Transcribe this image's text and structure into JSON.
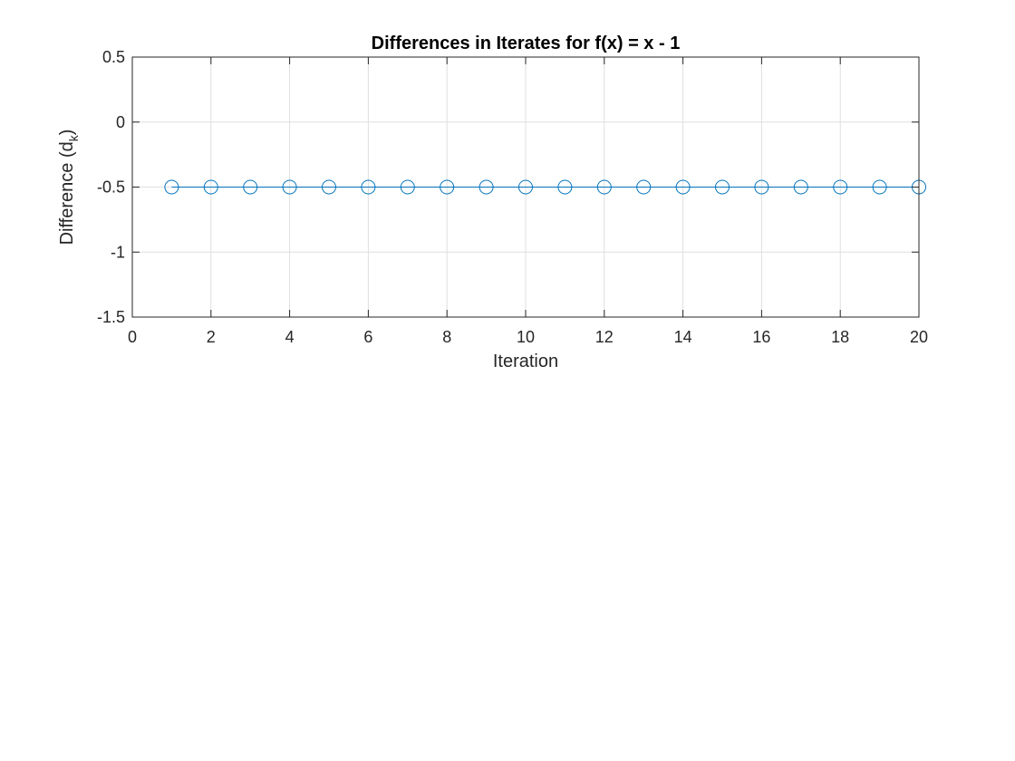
{
  "chart_data": {
    "type": "line",
    "title": "Differences in Iterates for f(x) = x - 1",
    "xlabel": "Iteration",
    "ylabel": {
      "main": "Difference (d",
      "subscript": "k",
      "close": ")"
    },
    "xlim": [
      0,
      20
    ],
    "ylim": [
      -1.5,
      0.5
    ],
    "xticks": [
      0,
      2,
      4,
      6,
      8,
      10,
      12,
      14,
      16,
      18,
      20
    ],
    "xtick_labels": [
      "0",
      "2",
      "4",
      "6",
      "8",
      "10",
      "12",
      "14",
      "16",
      "18",
      "20"
    ],
    "yticks": [
      -1.5,
      -1,
      -0.5,
      0,
      0.5
    ],
    "ytick_labels": [
      "-1.5",
      "-1",
      "-0.5",
      "0",
      "0.5"
    ],
    "grid": true,
    "marker": "circle",
    "line_color": "#0072BD",
    "series": [
      {
        "x": [
          1,
          2,
          3,
          4,
          5,
          6,
          7,
          8,
          9,
          10,
          11,
          12,
          13,
          14,
          15,
          16,
          17,
          18,
          19,
          20
        ],
        "y": [
          -0.5,
          -0.5,
          -0.5,
          -0.5,
          -0.5,
          -0.5,
          -0.5,
          -0.5,
          -0.5,
          -0.5,
          -0.5,
          -0.5,
          -0.5,
          -0.5,
          -0.5,
          -0.5,
          -0.5,
          -0.5,
          -0.5,
          -0.5
        ]
      }
    ]
  }
}
